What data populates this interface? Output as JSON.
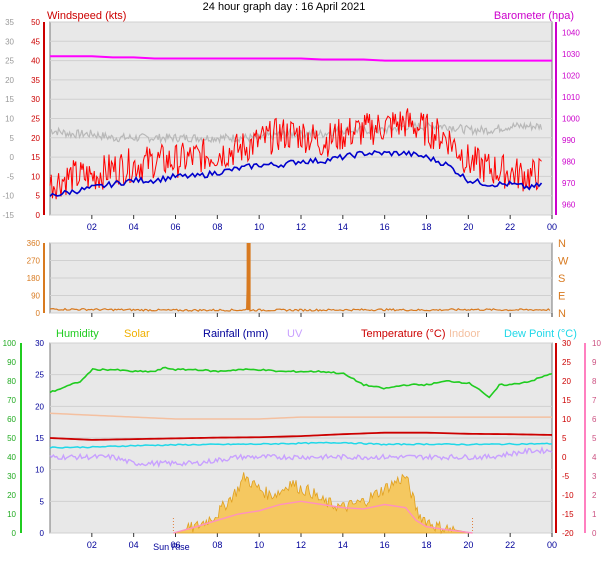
{
  "title": "24 hour graph day : 16 April 2021",
  "colors": {
    "wind": "#ff0000",
    "gust_grey": "#b8b8b8",
    "avg": "#0000cc",
    "baro": "#ff00ff",
    "dir": "#d87a20",
    "humidity": "#20cc20",
    "solar": "#f0b000",
    "rain": "#000099",
    "uv": "#c8a0ff",
    "temp": "#cc0000",
    "indoor": "#f4c0a0",
    "dew": "#20d8e8",
    "plot_bg": "#e8e8e8",
    "frame": "#000000"
  },
  "chart_data": [
    {
      "type": "line",
      "title": "",
      "legend_left": "Windspeed (kts)",
      "legend_right": "Barometer (hpa)",
      "x_ticks": [
        "02",
        "04",
        "06",
        "08",
        "10",
        "12",
        "14",
        "16",
        "18",
        "20",
        "22",
        "00"
      ],
      "x_tick_hours": [
        2,
        4,
        6,
        8,
        10,
        12,
        14,
        16,
        18,
        20,
        22,
        24
      ],
      "xlim": [
        0,
        24
      ],
      "y_left_ticks": [
        0,
        5,
        10,
        15,
        20,
        25,
        30,
        35,
        40,
        45,
        50
      ],
      "y_left_labels": [
        "0",
        "5",
        "10",
        "15",
        "20",
        "25",
        "30",
        "35",
        "40",
        "45",
        "50"
      ],
      "ylim_left": [
        0,
        50
      ],
      "y_outer_labels": [
        "-15",
        "-10",
        "-5",
        "0",
        "5",
        "10",
        "15",
        "20",
        "25",
        "30",
        "35"
      ],
      "y_right_ticks": [
        960,
        970,
        980,
        990,
        1000,
        1010,
        1020,
        1030,
        1040
      ],
      "ylim_right": [
        955,
        1045
      ],
      "series": [
        {
          "role": "gust",
          "hours": [
            0,
            1,
            2,
            3,
            4,
            5,
            6,
            7,
            8,
            9,
            10,
            11,
            12,
            13,
            14,
            15,
            16,
            17,
            18,
            19,
            20,
            21,
            22,
            23,
            23.5
          ],
          "values": [
            8,
            10,
            10,
            12,
            13,
            14,
            14,
            15,
            16,
            17,
            19,
            21,
            21,
            19,
            21,
            22,
            23,
            24,
            22,
            20,
            14,
            12,
            11,
            10,
            11
          ]
        },
        {
          "role": "grey",
          "hours": [
            0,
            1,
            2,
            3,
            4,
            5,
            6,
            7,
            8,
            9,
            10,
            11,
            12,
            13,
            14,
            15,
            16,
            17,
            18,
            19,
            20,
            21,
            22,
            23,
            23.5
          ],
          "values": [
            22,
            21,
            21,
            20,
            20,
            20,
            20,
            20,
            20,
            20,
            20,
            21,
            21,
            21,
            22,
            22,
            22,
            23,
            23,
            23,
            22,
            22,
            23,
            23,
            23
          ]
        },
        {
          "role": "average",
          "hours": [
            0,
            1,
            2,
            3,
            4,
            5,
            6,
            7,
            8,
            9,
            10,
            11,
            12,
            13,
            14,
            15,
            16,
            17,
            18,
            19,
            20,
            21,
            22,
            23,
            23.5
          ],
          "values": [
            5,
            6,
            7,
            8,
            9,
            9,
            10,
            10,
            11,
            12,
            13,
            13,
            14,
            14,
            15,
            16,
            16,
            16,
            15,
            13,
            9,
            8,
            8,
            7,
            8
          ]
        },
        {
          "role": "barometer",
          "hours": [
            0,
            1,
            2,
            3,
            4,
            5,
            6,
            7,
            8,
            9,
            10,
            11,
            12,
            13,
            14,
            15,
            16,
            17,
            18,
            19,
            20,
            21,
            22,
            23,
            24
          ],
          "values": [
            1029,
            1029,
            1029,
            1028.5,
            1028.5,
            1028,
            1028,
            1028,
            1028,
            1028,
            1028,
            1028,
            1028,
            1027.5,
            1027.5,
            1027.5,
            1027,
            1027,
            1027,
            1027,
            1027,
            1027,
            1027,
            1027,
            1027
          ]
        }
      ]
    },
    {
      "type": "line",
      "title": "",
      "y_ticks": [
        0,
        90,
        180,
        270,
        360
      ],
      "y_labels": [
        "0",
        "90",
        "180",
        "270",
        "360"
      ],
      "ylim": [
        0,
        360
      ],
      "compass_labels": [
        "N",
        "W",
        "S",
        "E",
        "N"
      ],
      "series": [
        {
          "role": "direction",
          "hours": [
            0,
            2,
            4,
            6,
            8,
            9.4,
            9.45,
            9.5,
            9.55,
            12,
            14,
            16,
            18,
            20,
            22,
            23.9
          ],
          "values": [
            20,
            18,
            16,
            14,
            15,
            15,
            360,
            360,
            15,
            15,
            16,
            17,
            15,
            18,
            16,
            17
          ]
        }
      ]
    },
    {
      "type": "line",
      "title": "",
      "legends": [
        {
          "key": "humidity",
          "label": "Humidity"
        },
        {
          "key": "solar",
          "label": "Solar"
        },
        {
          "key": "rain",
          "label": "Rainfall (mm)"
        },
        {
          "key": "uv",
          "label": "UV"
        },
        {
          "key": "temp",
          "label": "Temperature (°C)"
        },
        {
          "key": "indoor",
          "label": "Indoor"
        },
        {
          "key": "dew",
          "label": "Dew Point (°C)"
        }
      ],
      "sun_rise_label": "Sun Rise",
      "sun_set_label": "",
      "sunrise_hour": 5.9,
      "sunset_hour": 20.2,
      "y_hum_ticks": [
        0,
        10,
        20,
        30,
        40,
        50,
        60,
        70,
        80,
        90,
        100
      ],
      "y_hum_labels": [
        "0",
        "10",
        "20",
        "30",
        "40",
        "50",
        "60",
        "70",
        "80",
        "90",
        "100"
      ],
      "y_mid_ticks": [
        0,
        5,
        10,
        15,
        20,
        25,
        30
      ],
      "y_mid_labels": [
        "0",
        "5",
        "10",
        "15",
        "20",
        "25",
        "30"
      ],
      "y_right_ticks": [
        -20,
        -15,
        -10,
        -5,
        0,
        5,
        10,
        15,
        20,
        25,
        30
      ],
      "y_right_labels": [
        "-20",
        "-15",
        "-10",
        "-5",
        "0",
        "5",
        "10",
        "15",
        "20",
        "25",
        "30"
      ],
      "y_far_ticks": [
        0,
        1,
        2,
        3,
        4,
        5,
        6,
        7,
        8,
        9,
        10
      ],
      "y_far_labels": [
        "0",
        "1",
        "2",
        "3",
        "4",
        "5",
        "6",
        "7",
        "8",
        "9",
        "10"
      ],
      "series": [
        {
          "role": "humidity",
          "hours": [
            0,
            1,
            1.5,
            2,
            3,
            4,
            5,
            5.5,
            6,
            7,
            8,
            9,
            10,
            11,
            12,
            13,
            14,
            15,
            16,
            17,
            18,
            19,
            20,
            20.5,
            21,
            21.5,
            22,
            23,
            24
          ],
          "values": [
            74,
            78,
            80,
            86,
            86,
            85,
            85,
            87,
            86,
            86,
            85,
            86,
            86,
            85,
            85,
            85,
            84,
            78,
            76,
            78,
            78,
            80,
            79,
            76,
            71,
            78,
            78,
            80,
            84
          ]
        },
        {
          "role": "indoor",
          "hours": [
            0,
            2,
            4,
            6,
            8,
            10,
            12,
            14,
            16,
            18,
            20,
            22,
            24
          ],
          "values": [
            63,
            62,
            61,
            60,
            60,
            60,
            61,
            61,
            61,
            61,
            61,
            61,
            61
          ]
        },
        {
          "role": "temperature",
          "hours": [
            0,
            2,
            4,
            6,
            8,
            10,
            12,
            14,
            16,
            18,
            20,
            22,
            24
          ],
          "values": [
            5,
            4.5,
            4.7,
            4.9,
            5.1,
            5.2,
            5.5,
            6,
            6.4,
            6.4,
            6.1,
            6,
            5.8
          ]
        },
        {
          "role": "dewpoint",
          "hours": [
            0,
            2,
            4,
            6,
            8,
            10,
            12,
            14,
            16,
            18,
            20,
            22,
            24
          ],
          "values": [
            2.5,
            2.6,
            3,
            3.2,
            3.3,
            3.4,
            3.6,
            3.8,
            3.3,
            3.4,
            3.3,
            3.4,
            3.5
          ]
        },
        {
          "role": "uv_like",
          "hours": [
            0,
            1,
            2,
            3,
            4,
            5,
            6,
            7,
            8,
            9,
            10,
            11,
            12,
            13,
            14,
            15,
            16,
            17,
            18,
            19,
            20,
            21,
            22,
            23,
            24
          ],
          "values": [
            12,
            12,
            12,
            12,
            11,
            11,
            11,
            11,
            11.5,
            12,
            12,
            12,
            12,
            12,
            12,
            12,
            12,
            12,
            12,
            12,
            12,
            12,
            12.5,
            13,
            13
          ]
        },
        {
          "role": "solar",
          "hours": [
            5.9,
            6.5,
            7,
            7.5,
            8,
            8.5,
            9,
            9.3,
            9.6,
            10,
            10.5,
            11,
            11.5,
            12,
            12.5,
            13,
            13.5,
            14,
            14.5,
            15,
            15.5,
            16,
            16.5,
            17,
            17.3,
            17.6,
            18,
            18.5,
            19,
            19.5,
            20,
            20.2
          ],
          "values": [
            0,
            0.5,
            1,
            2,
            3,
            5,
            7,
            9,
            8,
            7,
            6,
            6.5,
            8,
            7,
            6.5,
            5,
            4.5,
            4,
            4.5,
            5,
            6,
            7,
            8,
            9,
            6,
            3,
            2,
            1,
            0.7,
            0.4,
            0.1,
            0
          ]
        },
        {
          "role": "solar_pink",
          "hours": [
            5.9,
            7,
            8,
            9,
            10,
            11,
            12,
            13,
            14,
            15,
            16,
            17,
            17.5,
            18,
            19,
            20.2
          ],
          "values": [
            0,
            1,
            2,
            3,
            3.5,
            4.5,
            5,
            4.5,
            4,
            3.8,
            4.5,
            4,
            2,
            1,
            0.5,
            0
          ]
        }
      ]
    }
  ]
}
